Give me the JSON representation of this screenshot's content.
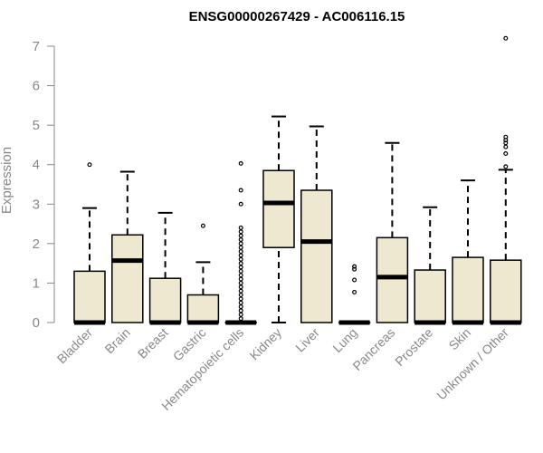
{
  "chart_data": {
    "type": "boxplot",
    "title": "ENSG00000267429 - AC006116.15",
    "ylabel": "Expression",
    "xlabel": "",
    "ylim": [
      0,
      7
    ],
    "yticks": [
      0,
      1,
      2,
      3,
      4,
      5,
      6,
      7
    ],
    "grid": false,
    "colors": {
      "box_fill": "#EEE8D0",
      "stroke": "#000000",
      "axis": "#888888"
    },
    "categories": [
      "Bladder",
      "Brain",
      "Breast",
      "Gastric",
      "Hematopoietic cells",
      "Kidney",
      "Liver",
      "Lung",
      "Pancreas",
      "Prostate",
      "Skin",
      "Unknown / Other"
    ],
    "boxes": [
      {
        "min": 0,
        "q1": 0,
        "median": 0,
        "q3": 1.3,
        "max": 2.9,
        "outliers": [
          4.0
        ]
      },
      {
        "min": 0,
        "q1": 0,
        "median": 1.57,
        "q3": 2.22,
        "max": 3.82,
        "outliers": []
      },
      {
        "min": 0,
        "q1": 0,
        "median": 0,
        "q3": 1.12,
        "max": 2.78,
        "outliers": []
      },
      {
        "min": 0,
        "q1": 0,
        "median": 0,
        "q3": 0.7,
        "max": 1.53,
        "outliers": [
          2.45
        ]
      },
      {
        "min": 0,
        "q1": 0,
        "median": 0,
        "q3": 0,
        "max": 0,
        "outliers": [
          0.1,
          0.2,
          0.3,
          0.4,
          0.5,
          0.6,
          0.7,
          0.8,
          0.9,
          1.0,
          1.1,
          1.2,
          1.3,
          1.4,
          1.5,
          1.6,
          1.7,
          1.8,
          1.9,
          2.0,
          2.1,
          2.2,
          2.3,
          2.4,
          3.0,
          3.35,
          4.03
        ]
      },
      {
        "min": 0,
        "q1": 1.9,
        "median": 3.03,
        "q3": 3.85,
        "max": 5.22,
        "outliers": []
      },
      {
        "min": 0,
        "q1": 0,
        "median": 2.05,
        "q3": 3.35,
        "max": 4.97,
        "outliers": []
      },
      {
        "min": 0,
        "q1": 0,
        "median": 0,
        "q3": 0,
        "max": 0,
        "outliers": [
          0.77,
          1.08,
          1.35,
          1.42
        ]
      },
      {
        "min": 0,
        "q1": 0,
        "median": 1.15,
        "q3": 2.15,
        "max": 4.55,
        "outliers": []
      },
      {
        "min": 0,
        "q1": 0,
        "median": 0,
        "q3": 1.33,
        "max": 2.92,
        "outliers": []
      },
      {
        "min": 0,
        "q1": 0,
        "median": 0,
        "q3": 1.65,
        "max": 3.6,
        "outliers": []
      },
      {
        "min": 0,
        "q1": 0,
        "median": 0,
        "q3": 1.58,
        "max": 3.87,
        "outliers": [
          3.95,
          4.28,
          4.45,
          4.55,
          4.62,
          4.7,
          7.2
        ]
      }
    ]
  }
}
